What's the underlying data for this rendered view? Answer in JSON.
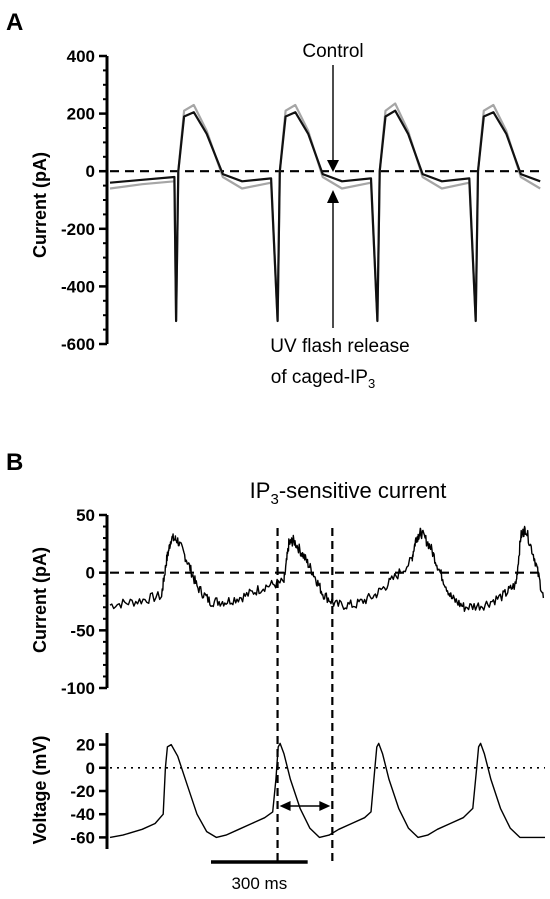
{
  "panel_a": {
    "letter": "A",
    "ylabel": "Current (pA)",
    "annotation_control": "Control",
    "annotation_uv_line1": "UV flash release",
    "annotation_uv_line2_prefix": "of caged-IP",
    "annotation_uv_line2_sub": "3"
  },
  "panel_b": {
    "letter": "B",
    "title_prefix": "IP",
    "title_sub": "3",
    "title_suffix": "-sensitive current",
    "current_ylabel": "Current (pA)",
    "voltage_ylabel": "Voltage (mV)",
    "scalebar_label": "300 ms"
  },
  "chart_data": [
    {
      "type": "line",
      "title": "",
      "ylabel": "Current (pA)",
      "ylim": [
        -600,
        400
      ],
      "yticks": [
        400,
        200,
        0,
        -200,
        -400,
        -600
      ],
      "x_units": "ms",
      "xlim": [
        0,
        1350
      ],
      "reference_line": {
        "y": 0,
        "style": "dashed"
      },
      "spike_times": [
        205,
        520,
        830,
        1135
      ],
      "spike_min": -520,
      "series": [
        {
          "name": "Control",
          "color": "#a6a6a6",
          "x": [
            0,
            100,
            200,
            205,
            212,
            230,
            260,
            300,
            350,
            410,
            500,
            520,
            527,
            545,
            575,
            615,
            660,
            720,
            810,
            830,
            837,
            855,
            885,
            925,
            970,
            1030,
            1115,
            1135,
            1142,
            1160,
            1190,
            1230,
            1275,
            1335
          ],
          "y": [
            -60,
            -45,
            -35,
            -520,
            0,
            210,
            230,
            140,
            -20,
            -60,
            -40,
            -520,
            0,
            210,
            230,
            140,
            -20,
            -60,
            -40,
            -520,
            0,
            210,
            235,
            140,
            -20,
            -60,
            -40,
            -520,
            0,
            210,
            230,
            140,
            -20,
            -60
          ]
        },
        {
          "name": "UV flash release of caged-IP3",
          "color": "#111111",
          "x": [
            0,
            100,
            200,
            205,
            212,
            230,
            260,
            300,
            350,
            410,
            500,
            520,
            527,
            545,
            575,
            615,
            660,
            720,
            810,
            830,
            837,
            855,
            885,
            925,
            970,
            1030,
            1115,
            1135,
            1142,
            1160,
            1190,
            1230,
            1275,
            1335
          ],
          "y": [
            -40,
            -30,
            -20,
            -520,
            0,
            190,
            205,
            130,
            -10,
            -35,
            -25,
            -520,
            0,
            190,
            205,
            130,
            -10,
            -35,
            -25,
            -520,
            0,
            190,
            210,
            130,
            -10,
            -35,
            -25,
            -520,
            0,
            190,
            205,
            130,
            -10,
            -35
          ]
        }
      ]
    },
    {
      "type": "line",
      "title": "IP3-sensitive current",
      "ylabel": "Current (pA)",
      "ylim": [
        -100,
        50
      ],
      "yticks": [
        50,
        0,
        -50,
        -100
      ],
      "x_units": "ms",
      "xlim": [
        0,
        1350
      ],
      "reference_line": {
        "y": 0,
        "style": "dashed"
      },
      "series": [
        {
          "name": "IP3-sensitive current",
          "color": "#000000",
          "x": [
            0,
            80,
            160,
            175,
            190,
            210,
            240,
            270,
            310,
            360,
            420,
            480,
            540,
            555,
            570,
            600,
            630,
            660,
            700,
            760,
            820,
            870,
            935,
            950,
            965,
            995,
            1025,
            1060,
            1100,
            1160,
            1220,
            1260,
            1275,
            1290,
            1320,
            1345
          ],
          "y": [
            -28,
            -25,
            -20,
            10,
            30,
            28,
            10,
            -12,
            -25,
            -25,
            -20,
            -12,
            -8,
            25,
            28,
            15,
            0,
            -18,
            -28,
            -28,
            -20,
            -8,
            10,
            30,
            35,
            22,
            0,
            -22,
            -30,
            -28,
            -20,
            -10,
            32,
            38,
            10,
            -22
          ]
        }
      ]
    },
    {
      "type": "line",
      "title": "",
      "ylabel": "Voltage (mV)",
      "ylim": [
        -70,
        30
      ],
      "yticks": [
        20,
        0,
        -20,
        -40,
        -60
      ],
      "x_units": "ms",
      "xlim": [
        0,
        1350
      ],
      "reference_line": {
        "y": 0,
        "style": "dotted"
      },
      "scale_bar": {
        "length": 300,
        "label": "300 ms"
      },
      "interval_markers": {
        "x": [
          520,
          690
        ],
        "style": "dashed"
      },
      "series": [
        {
          "name": "Voltage",
          "color": "#000000",
          "x": [
            0,
            40,
            100,
            140,
            165,
            172,
            178,
            190,
            210,
            240,
            270,
            300,
            330,
            360,
            400,
            440,
            480,
            505,
            515,
            522,
            528,
            540,
            560,
            590,
            620,
            650,
            680,
            710,
            750,
            790,
            810,
            822,
            828,
            834,
            846,
            866,
            896,
            926,
            956,
            986,
            1016,
            1056,
            1096,
            1126,
            1138,
            1144,
            1150,
            1162,
            1182,
            1212,
            1242,
            1272,
            1302,
            1332,
            1350
          ],
          "y": [
            -60,
            -58,
            -53,
            -48,
            -40,
            0,
            18,
            20,
            10,
            -15,
            -40,
            -55,
            -60,
            -58,
            -53,
            -48,
            -43,
            -38,
            -10,
            18,
            21,
            12,
            -10,
            -35,
            -52,
            -60,
            -58,
            -53,
            -48,
            -43,
            -38,
            0,
            18,
            21,
            12,
            -10,
            -35,
            -52,
            -60,
            -58,
            -53,
            -48,
            -43,
            -35,
            0,
            18,
            21,
            12,
            -10,
            -35,
            -52,
            -60,
            -60,
            -60,
            -60
          ]
        }
      ]
    }
  ]
}
